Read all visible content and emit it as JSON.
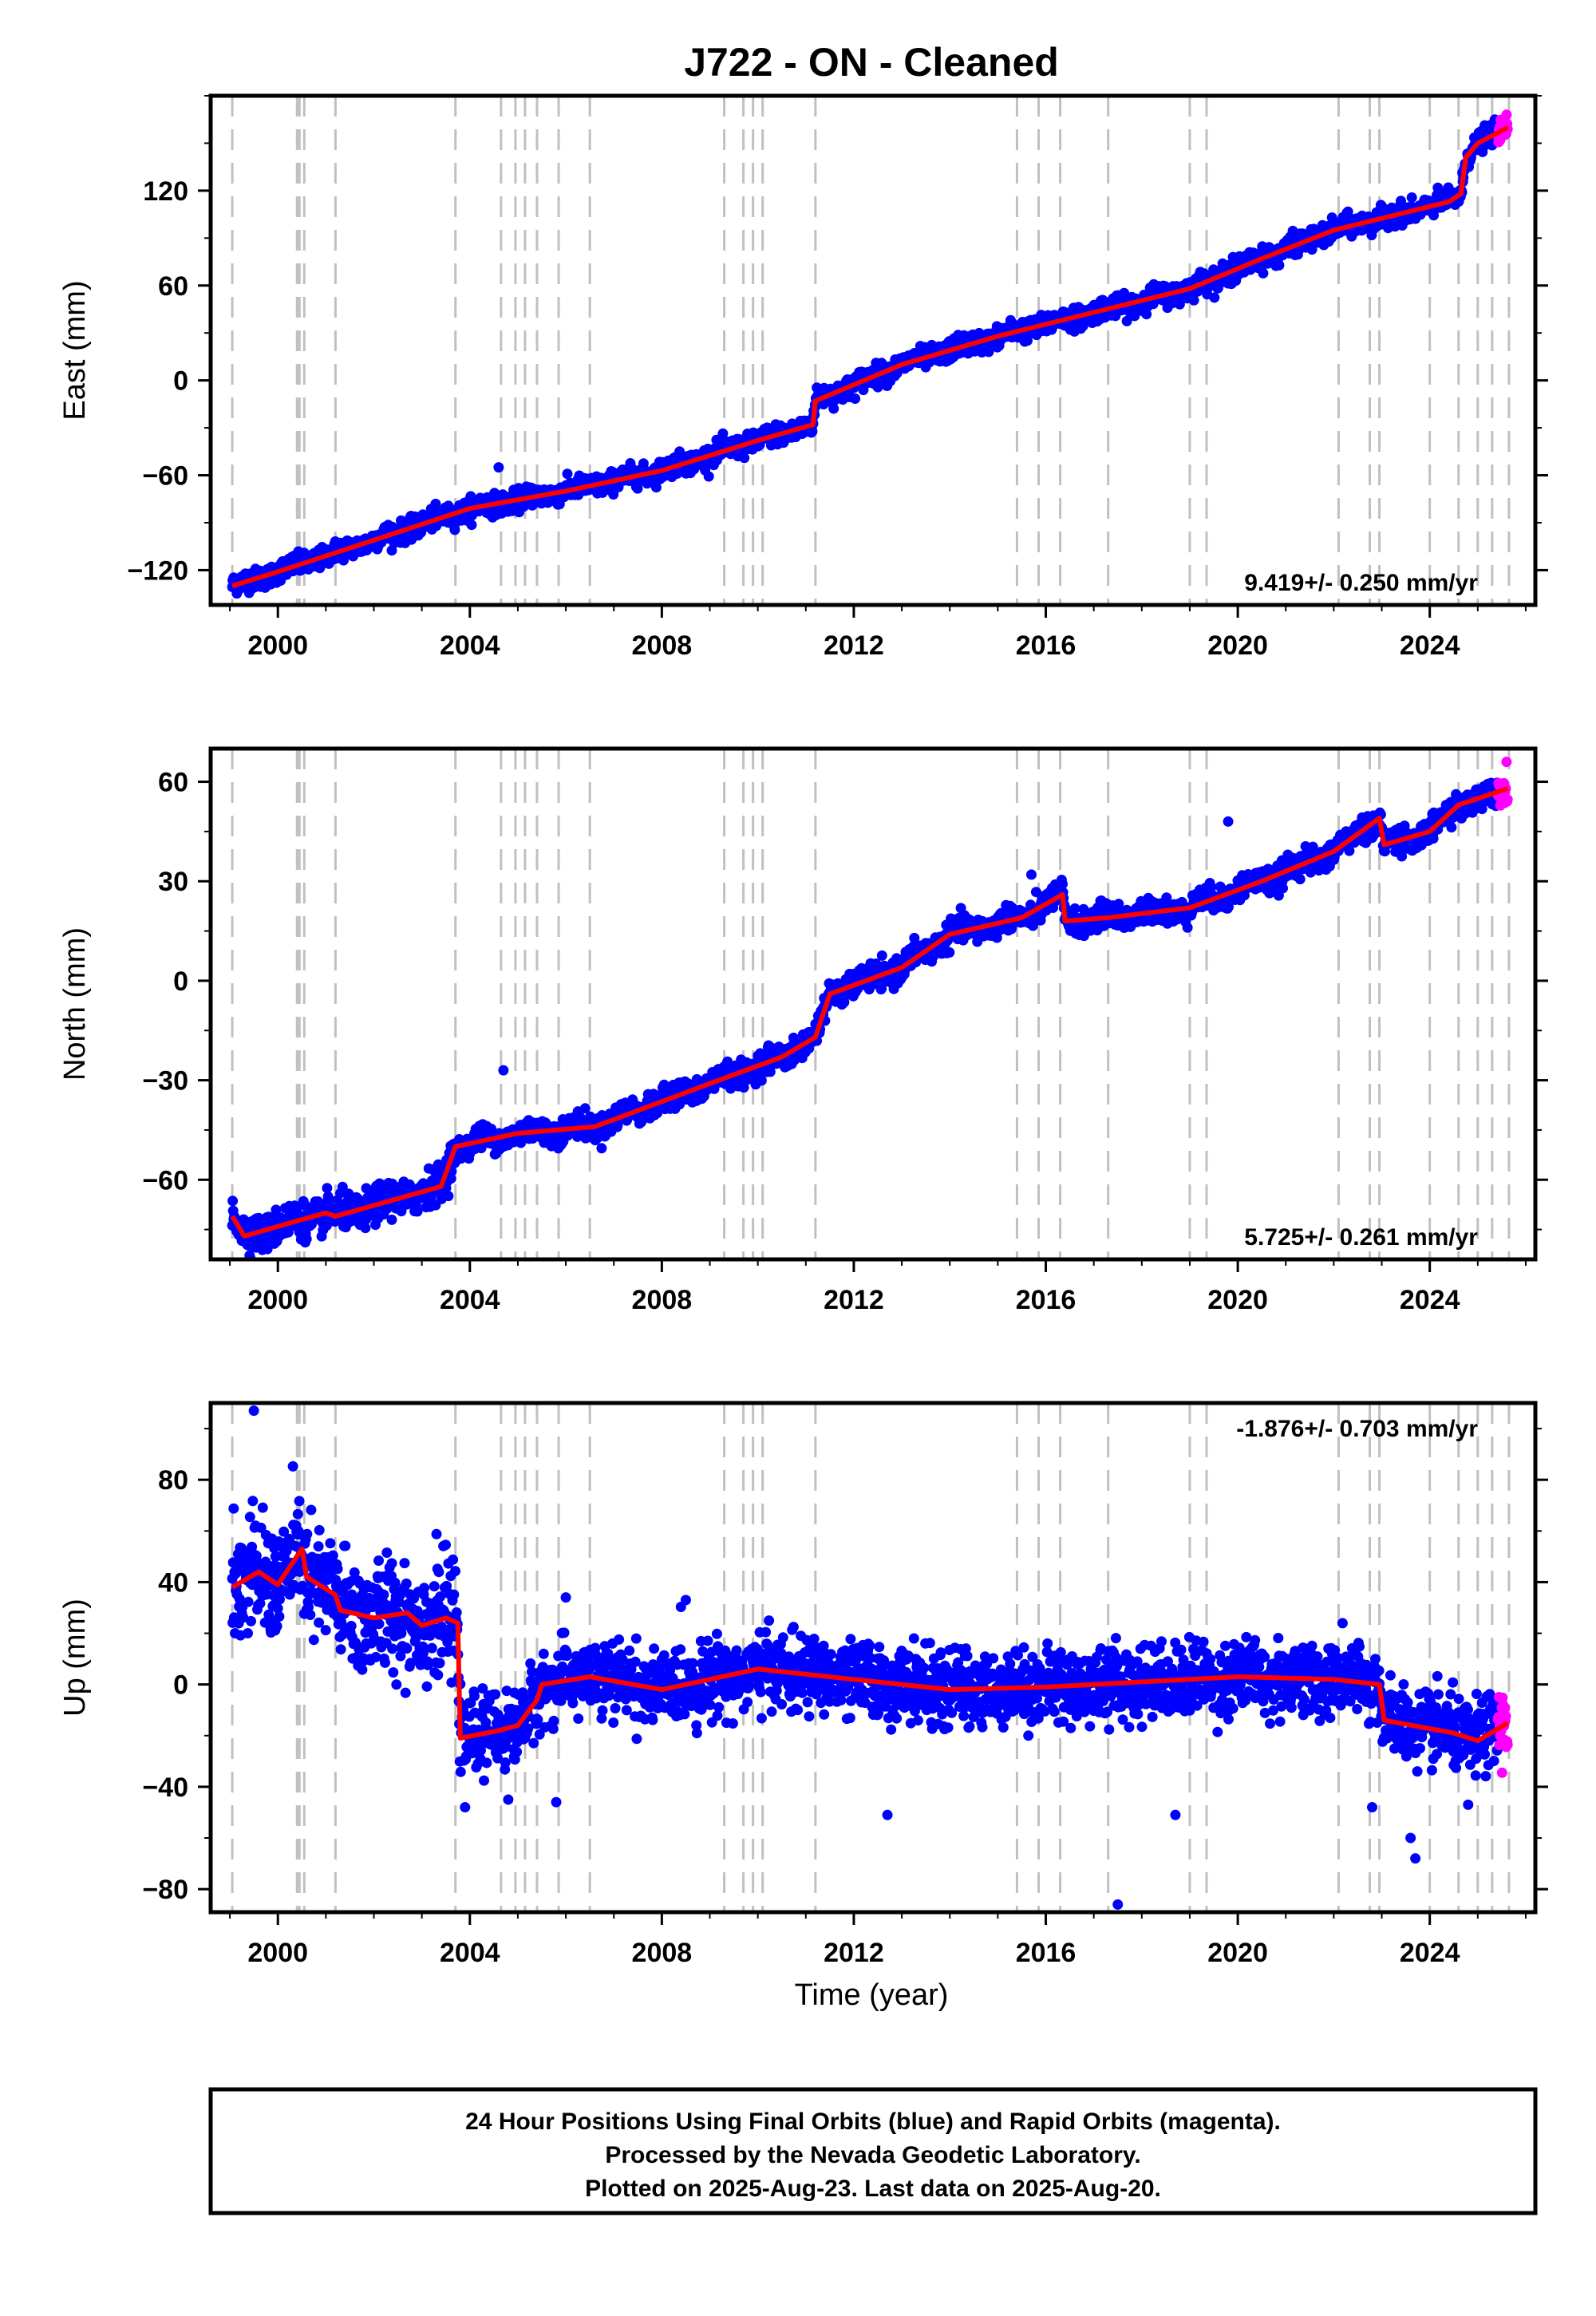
{
  "chart_data": {
    "title": "J722  - ON - Cleaned",
    "type": "scatter",
    "x_label": "Time (year)",
    "x_ticks": [
      2000,
      2004,
      2008,
      2012,
      2016,
      2020,
      2024
    ],
    "x_range": [
      1998.6,
      2026.2
    ],
    "data_start": 1999.05,
    "data_end": 2025.63,
    "rapid_start": 2025.42,
    "colors": {
      "final": "#0000ff",
      "rapid": "#ff00ff",
      "model": "#ff0000",
      "events": "#c0c0c0"
    },
    "event_lines": [
      1999.05,
      2000.4,
      2000.45,
      2000.55,
      2001.2,
      2003.7,
      2004.65,
      2004.95,
      2005.15,
      2005.4,
      2005.85,
      2006.5,
      2009.3,
      2009.7,
      2009.9,
      2010.1,
      2011.2,
      2015.4,
      2015.85,
      2016.3,
      2017.3,
      2019.0,
      2019.35,
      2022.1,
      2022.75,
      2022.95,
      2024.0,
      2024.6,
      2025.0,
      2025.3,
      2025.65
    ],
    "panels": [
      {
        "name": "East",
        "y_label": "East (mm)",
        "y_range": [
          -142,
          180
        ],
        "y_ticks": [
          -120,
          -60,
          0,
          60,
          120
        ],
        "y_tick_labels": [
          "−120",
          "−60",
          "0",
          "60",
          "120"
        ],
        "rate_text": "9.419+/- 0.250 mm/yr",
        "rate_pos": "bottom-right",
        "scatter_sd": 3.2,
        "model_points": [
          [
            1999.05,
            -130
          ],
          [
            2000.0,
            -121
          ],
          [
            2002.0,
            -101
          ],
          [
            2004.0,
            -81
          ],
          [
            2006.0,
            -70
          ],
          [
            2008.0,
            -57
          ],
          [
            2010.0,
            -38
          ],
          [
            2011.15,
            -28
          ],
          [
            2011.2,
            -13
          ],
          [
            2013.0,
            10
          ],
          [
            2015.0,
            28
          ],
          [
            2017.0,
            43
          ],
          [
            2019.0,
            58
          ],
          [
            2020.5,
            77
          ],
          [
            2022.0,
            95
          ],
          [
            2024.4,
            113
          ],
          [
            2024.65,
            118
          ],
          [
            2024.75,
            141
          ],
          [
            2025.0,
            150
          ],
          [
            2025.63,
            160
          ]
        ],
        "outliers": [
          [
            2004.6,
            -55
          ],
          [
            2003.3,
            -92
          ],
          [
            2019.9,
            78
          ],
          [
            2025.6,
            168
          ]
        ]
      },
      {
        "name": "North",
        "y_label": "North (mm)",
        "y_range": [
          -84,
          70
        ],
        "y_ticks": [
          -60,
          -30,
          0,
          30,
          60
        ],
        "y_tick_labels": [
          "−60",
          "−30",
          "0",
          "30",
          "60"
        ],
        "rate_text": "5.725+/- 0.261 mm/yr",
        "rate_pos": "bottom-right",
        "scatter_sd": 1.8,
        "model_points": [
          [
            1999.05,
            -71
          ],
          [
            1999.3,
            -77
          ],
          [
            2000.5,
            -72
          ],
          [
            2001.0,
            -70
          ],
          [
            2001.2,
            -71
          ],
          [
            2003.4,
            -62
          ],
          [
            2003.7,
            -50
          ],
          [
            2005.0,
            -46
          ],
          [
            2006.6,
            -44
          ],
          [
            2009.0,
            -31
          ],
          [
            2010.5,
            -23
          ],
          [
            2011.2,
            -17
          ],
          [
            2011.5,
            -4
          ],
          [
            2013.0,
            4
          ],
          [
            2014.0,
            14
          ],
          [
            2015.5,
            19
          ],
          [
            2016.35,
            26
          ],
          [
            2016.4,
            18
          ],
          [
            2017.3,
            19
          ],
          [
            2019.0,
            22
          ],
          [
            2020.5,
            30
          ],
          [
            2022.0,
            39
          ],
          [
            2022.95,
            49
          ],
          [
            2023.05,
            41
          ],
          [
            2024.0,
            45
          ],
          [
            2024.6,
            53
          ],
          [
            2025.63,
            58
          ]
        ],
        "outliers": [
          [
            2004.7,
            -27
          ],
          [
            2019.8,
            48
          ],
          [
            2015.7,
            32
          ],
          [
            2025.6,
            66
          ]
        ]
      },
      {
        "name": "Up",
        "y_label": "Up (mm)",
        "y_range": [
          -89,
          110
        ],
        "y_ticks": [
          -80,
          -40,
          0,
          40,
          80
        ],
        "y_tick_labels": [
          "−80",
          "−40",
          "0",
          "40",
          "80"
        ],
        "rate_text": "-1.876+/- 0.703 mm/yr",
        "rate_pos": "top-right",
        "scatter_sd": 7,
        "model_points": [
          [
            1999.05,
            38
          ],
          [
            1999.6,
            44
          ],
          [
            2000.0,
            39
          ],
          [
            2000.5,
            53
          ],
          [
            2000.6,
            42
          ],
          [
            2001.2,
            35
          ],
          [
            2001.3,
            29
          ],
          [
            2002.0,
            26
          ],
          [
            2002.7,
            28
          ],
          [
            2003.0,
            23
          ],
          [
            2003.5,
            26
          ],
          [
            2003.75,
            24
          ],
          [
            2003.8,
            -21
          ],
          [
            2004.6,
            -18
          ],
          [
            2005.0,
            -16
          ],
          [
            2005.4,
            -6
          ],
          [
            2005.5,
            0
          ],
          [
            2006.5,
            3
          ],
          [
            2008.0,
            -2
          ],
          [
            2010.0,
            6
          ],
          [
            2012.0,
            2
          ],
          [
            2014.0,
            -2
          ],
          [
            2016.0,
            -1
          ],
          [
            2018.0,
            1
          ],
          [
            2020.0,
            3
          ],
          [
            2022.0,
            2
          ],
          [
            2022.95,
            0
          ],
          [
            2023.05,
            -14
          ],
          [
            2024.5,
            -19
          ],
          [
            2025.0,
            -22
          ],
          [
            2025.63,
            -15
          ]
        ],
        "outliers": [
          [
            1999.5,
            107
          ],
          [
            2003.9,
            -48
          ],
          [
            2004.8,
            -45
          ],
          [
            2005.8,
            -46
          ],
          [
            2012.7,
            -51
          ],
          [
            2017.5,
            -86
          ],
          [
            2018.7,
            -51
          ],
          [
            2023.6,
            -60
          ],
          [
            2023.7,
            -68
          ],
          [
            2024.8,
            -47
          ],
          [
            2022.8,
            -48
          ],
          [
            2006.0,
            34
          ],
          [
            2008.5,
            33
          ]
        ]
      }
    ],
    "footer_lines": [
      "24 Hour Positions Using Final Orbits (blue) and Rapid Orbits (magenta).",
      "Processed by the Nevada Geodetic Laboratory.",
      "Plotted on 2025-Aug-23. Last data on 2025-Aug-20."
    ]
  }
}
